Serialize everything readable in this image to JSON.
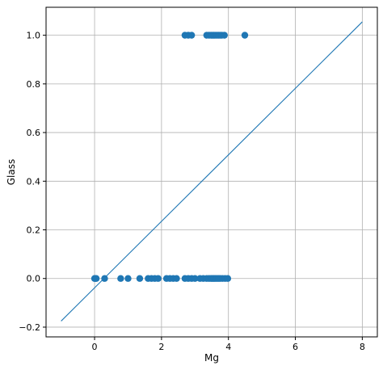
{
  "chart_data": {
    "type": "scatter",
    "title": "",
    "xlabel": "Mg",
    "ylabel": "Glass",
    "xlim": [
      -1.45,
      8.45
    ],
    "ylim": [
      -0.24,
      1.115
    ],
    "grid": true,
    "x_ticks": [
      0,
      2,
      4,
      6,
      8
    ],
    "x_tick_labels": [
      "0",
      "2",
      "4",
      "6",
      "8"
    ],
    "y_ticks": [
      -0.2,
      0.0,
      0.2,
      0.4,
      0.6,
      0.8,
      1.0
    ],
    "y_tick_labels": [
      "−0.2",
      "0.0",
      "0.2",
      "0.4",
      "0.6",
      "0.8",
      "1.0"
    ],
    "colors": {
      "points": "#1f77b4",
      "line": "#1f77b4",
      "grid": "#b0b0b0"
    },
    "series": [
      {
        "kind": "scatter",
        "points": [
          [
            0,
            0
          ],
          [
            0.02,
            0
          ],
          [
            0.05,
            0
          ],
          [
            0.3,
            0
          ],
          [
            0.78,
            0
          ],
          [
            1.0,
            0
          ],
          [
            1.35,
            0
          ],
          [
            1.6,
            0
          ],
          [
            1.7,
            0
          ],
          [
            1.8,
            0
          ],
          [
            1.9,
            0
          ],
          [
            2.15,
            0
          ],
          [
            2.25,
            0
          ],
          [
            2.35,
            0
          ],
          [
            2.45,
            0
          ],
          [
            2.7,
            0
          ],
          [
            2.8,
            0
          ],
          [
            2.9,
            0
          ],
          [
            3.0,
            0
          ],
          [
            3.15,
            0
          ],
          [
            3.25,
            0
          ],
          [
            3.35,
            0
          ],
          [
            3.42,
            0
          ],
          [
            3.48,
            0
          ],
          [
            3.52,
            0
          ],
          [
            3.56,
            0
          ],
          [
            3.6,
            0
          ],
          [
            3.65,
            0
          ],
          [
            3.7,
            0
          ],
          [
            3.75,
            0
          ],
          [
            3.82,
            0
          ],
          [
            3.9,
            0
          ],
          [
            3.98,
            0
          ],
          [
            2.7,
            1
          ],
          [
            2.8,
            1
          ],
          [
            2.9,
            1
          ],
          [
            3.35,
            1
          ],
          [
            3.42,
            1
          ],
          [
            3.48,
            1
          ],
          [
            3.52,
            1
          ],
          [
            3.56,
            1
          ],
          [
            3.6,
            1
          ],
          [
            3.65,
            1
          ],
          [
            3.7,
            1
          ],
          [
            3.75,
            1
          ],
          [
            3.8,
            1
          ],
          [
            3.88,
            1
          ],
          [
            4.49,
            1
          ]
        ]
      },
      {
        "kind": "line",
        "points": [
          [
            -1.0,
            -0.175
          ],
          [
            8.0,
            1.055
          ]
        ]
      }
    ]
  }
}
